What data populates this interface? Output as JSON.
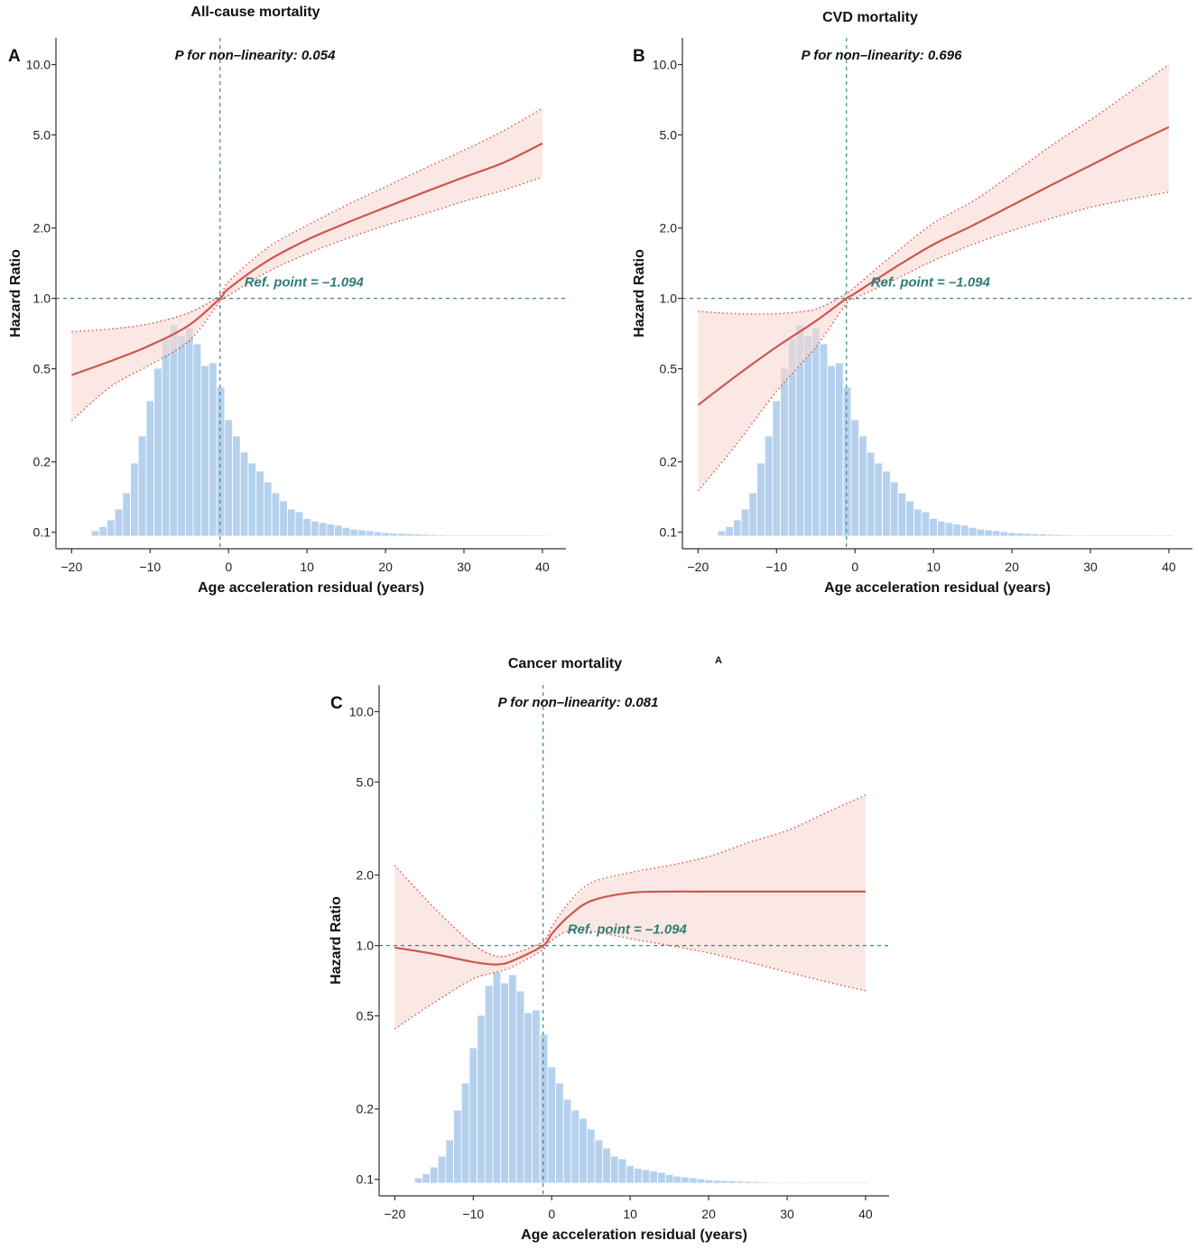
{
  "figure": {
    "stray_label": "A"
  },
  "chart_data": [
    {
      "type": "line",
      "panel": "A",
      "title": "All-cause mortality",
      "annotation": "P for non–linearity: 0.054",
      "ref_label": "Ref. point = –1.094",
      "ref_x": -1.094,
      "ref_y": 1.0,
      "xlabel": "Age acceleration residual (years)",
      "ylabel": "Hazard Ratio",
      "xlim": [
        -22,
        43
      ],
      "ylim": [
        0.085,
        13
      ],
      "yscale": "log",
      "xticks": [
        -20,
        -10,
        0,
        10,
        20,
        30,
        40
      ],
      "xtick_labels": [
        "−20",
        "−10",
        "0",
        "10",
        "20",
        "30",
        "40"
      ],
      "yticks": [
        0.1,
        0.2,
        0.5,
        1.0,
        2.0,
        5.0,
        10.0
      ],
      "ytick_labels": [
        "0.1",
        "0.2",
        "0.5",
        "1.0",
        "2.0",
        "5.0",
        "10.0"
      ],
      "x": [
        -20,
        -15,
        -10,
        -5,
        -1.094,
        0,
        5,
        10,
        15,
        20,
        25,
        30,
        35,
        40
      ],
      "series": [
        {
          "name": "Hazard ratio",
          "values": [
            0.47,
            0.54,
            0.63,
            0.77,
            1.0,
            1.1,
            1.45,
            1.78,
            2.1,
            2.45,
            2.85,
            3.3,
            3.8,
            4.6
          ]
        },
        {
          "name": "Lower 95% CI",
          "values": [
            0.3,
            0.42,
            0.52,
            0.66,
            0.97,
            1.03,
            1.3,
            1.55,
            1.8,
            2.05,
            2.3,
            2.6,
            2.9,
            3.3
          ]
        },
        {
          "name": "Upper 95% CI",
          "values": [
            0.72,
            0.74,
            0.78,
            0.87,
            1.03,
            1.18,
            1.65,
            2.05,
            2.5,
            3.0,
            3.6,
            4.3,
            5.2,
            6.5
          ]
        }
      ],
      "histogram": {
        "bin_start": -17.5,
        "bin_width": 1,
        "heights": [
          0.02,
          0.035,
          0.06,
          0.1,
          0.16,
          0.27,
          0.37,
          0.5,
          0.62,
          0.73,
          0.78,
          0.74,
          0.77,
          0.71,
          0.63,
          0.64,
          0.55,
          0.43,
          0.37,
          0.31,
          0.27,
          0.24,
          0.2,
          0.16,
          0.13,
          0.1,
          0.09,
          0.065,
          0.055,
          0.05,
          0.045,
          0.04,
          0.032,
          0.026,
          0.023,
          0.02,
          0.016,
          0.013,
          0.011,
          0.01,
          0.009,
          0.008,
          0.007,
          0.006,
          0.005,
          0.004,
          0.0035,
          0.003,
          0.0025,
          0.002,
          0.002,
          0.002,
          0.002,
          0.002,
          0.002,
          0.002,
          0.002,
          0.002
        ]
      }
    },
    {
      "type": "line",
      "panel": "B",
      "title": "CVD mortality",
      "annotation": "P for non–linearity: 0.696",
      "ref_label": "Ref. point = –1.094",
      "ref_x": -1.094,
      "ref_y": 1.0,
      "xlabel": "Age acceleration residual (years)",
      "ylabel": "Hazard Ratio",
      "xlim": [
        -22,
        43
      ],
      "ylim": [
        0.085,
        13
      ],
      "yscale": "log",
      "xticks": [
        -20,
        -10,
        0,
        10,
        20,
        30,
        40
      ],
      "xtick_labels": [
        "−20",
        "−10",
        "0",
        "10",
        "20",
        "30",
        "40"
      ],
      "yticks": [
        0.1,
        0.2,
        0.5,
        1.0,
        2.0,
        5.0,
        10.0
      ],
      "ytick_labels": [
        "0.1",
        "0.2",
        "0.5",
        "1.0",
        "2.0",
        "5.0",
        "10.0"
      ],
      "x": [
        -20,
        -15,
        -10,
        -5,
        -1.094,
        0,
        5,
        10,
        15,
        20,
        25,
        30,
        35,
        40
      ],
      "series": [
        {
          "name": "Hazard ratio",
          "values": [
            0.35,
            0.47,
            0.62,
            0.8,
            1.0,
            1.05,
            1.35,
            1.7,
            2.05,
            2.5,
            3.05,
            3.7,
            4.5,
            5.4
          ]
        },
        {
          "name": "Lower 95% CI",
          "values": [
            0.15,
            0.24,
            0.4,
            0.62,
            0.95,
            1.0,
            1.2,
            1.45,
            1.7,
            1.95,
            2.2,
            2.45,
            2.65,
            2.85
          ]
        },
        {
          "name": "Upper 95% CI",
          "values": [
            0.88,
            0.86,
            0.86,
            0.9,
            1.05,
            1.12,
            1.55,
            2.1,
            2.6,
            3.4,
            4.5,
            5.8,
            7.6,
            10.0
          ]
        }
      ],
      "histogram": {
        "bin_start": -17.5,
        "bin_width": 1,
        "heights": [
          0.02,
          0.035,
          0.06,
          0.1,
          0.16,
          0.27,
          0.37,
          0.5,
          0.62,
          0.73,
          0.78,
          0.74,
          0.77,
          0.71,
          0.63,
          0.64,
          0.55,
          0.43,
          0.37,
          0.31,
          0.27,
          0.24,
          0.2,
          0.16,
          0.13,
          0.1,
          0.09,
          0.065,
          0.055,
          0.05,
          0.045,
          0.04,
          0.032,
          0.026,
          0.023,
          0.02,
          0.016,
          0.013,
          0.011,
          0.01,
          0.009,
          0.008,
          0.007,
          0.006,
          0.005,
          0.004,
          0.0035,
          0.003,
          0.0025,
          0.002,
          0.002,
          0.002,
          0.002,
          0.002,
          0.002,
          0.002,
          0.002,
          0.002
        ]
      }
    },
    {
      "type": "line",
      "panel": "C",
      "title": "Cancer mortality",
      "annotation": "P for non–linearity: 0.081",
      "ref_label": "Ref. point = –1.094",
      "ref_x": -1.094,
      "ref_y": 1.0,
      "xlabel": "Age acceleration residual (years)",
      "ylabel": "Hazard Ratio",
      "xlim": [
        -22,
        43
      ],
      "ylim": [
        0.085,
        13
      ],
      "yscale": "log",
      "xticks": [
        -20,
        -10,
        0,
        10,
        20,
        30,
        40
      ],
      "xtick_labels": [
        "−20",
        "−10",
        "0",
        "10",
        "20",
        "30",
        "40"
      ],
      "yticks": [
        0.1,
        0.2,
        0.5,
        1.0,
        2.0,
        5.0,
        10.0
      ],
      "ytick_labels": [
        "0.1",
        "0.2",
        "0.5",
        "1.0",
        "2.0",
        "5.0",
        "10.0"
      ],
      "x": [
        -20,
        -15,
        -10,
        -7,
        -5,
        -1.094,
        0,
        2,
        5,
        10,
        15,
        20,
        25,
        30,
        35,
        40
      ],
      "series": [
        {
          "name": "Hazard ratio",
          "values": [
            0.98,
            0.92,
            0.85,
            0.83,
            0.86,
            1.0,
            1.12,
            1.32,
            1.55,
            1.68,
            1.7,
            1.7,
            1.7,
            1.7,
            1.7,
            1.7
          ]
        },
        {
          "name": "Lower 95% CI",
          "values": [
            0.44,
            0.57,
            0.72,
            0.77,
            0.81,
            0.96,
            1.05,
            1.15,
            1.15,
            1.07,
            1.0,
            0.93,
            0.85,
            0.77,
            0.7,
            0.64
          ]
        },
        {
          "name": "Upper 95% CI",
          "values": [
            2.2,
            1.45,
            1.01,
            0.9,
            0.92,
            1.04,
            1.2,
            1.5,
            1.85,
            2.05,
            2.2,
            2.4,
            2.75,
            3.1,
            3.7,
            4.4
          ]
        }
      ],
      "histogram": {
        "bin_start": -17.5,
        "bin_width": 1,
        "heights": [
          0.02,
          0.035,
          0.06,
          0.1,
          0.16,
          0.27,
          0.37,
          0.5,
          0.62,
          0.73,
          0.78,
          0.74,
          0.77,
          0.71,
          0.63,
          0.64,
          0.55,
          0.43,
          0.37,
          0.31,
          0.27,
          0.24,
          0.2,
          0.16,
          0.13,
          0.1,
          0.09,
          0.065,
          0.055,
          0.05,
          0.045,
          0.04,
          0.032,
          0.026,
          0.023,
          0.02,
          0.016,
          0.013,
          0.011,
          0.01,
          0.009,
          0.008,
          0.007,
          0.006,
          0.005,
          0.004,
          0.0035,
          0.003,
          0.0025,
          0.002,
          0.002,
          0.002,
          0.002,
          0.002,
          0.002,
          0.002,
          0.002,
          0.002
        ]
      }
    }
  ]
}
